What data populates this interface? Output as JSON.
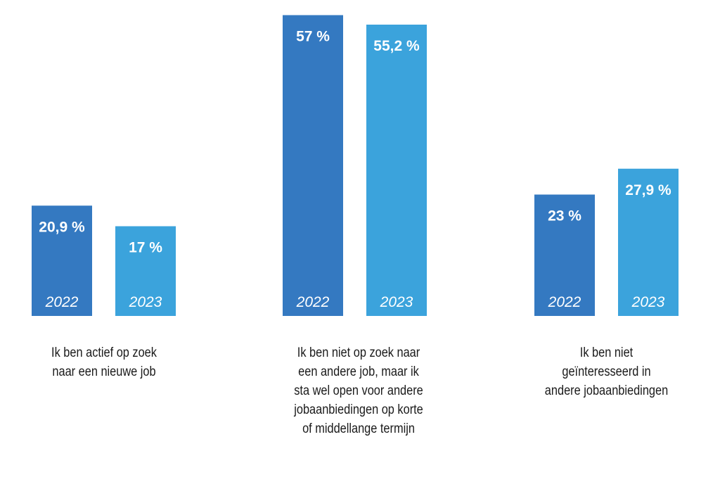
{
  "chart_data": {
    "type": "bar",
    "title": "",
    "xlabel": "",
    "ylabel": "",
    "ylim": [
      0,
      60
    ],
    "grid": false,
    "legend": "none",
    "categories": [
      "Ik ben actief op zoek naar een nieuwe job",
      "Ik ben niet op zoek naar een andere job, maar ik sta wel open voor andere jobaanbiedingen op korte of middellange termijn",
      "Ik ben niet geïnteresseerd in andere jobaanbiedingen"
    ],
    "category_lines": [
      [
        "Ik ben actief op zoek",
        "naar een nieuwe job"
      ],
      [
        "Ik ben niet op zoek naar",
        "een andere job, maar ik",
        "sta wel open voor andere",
        "jobaanbiedingen op korte",
        "of middellange termijn"
      ],
      [
        "Ik ben niet",
        "geïnteresseerd in",
        "andere jobaanbiedingen"
      ]
    ],
    "series": [
      {
        "name": "2022",
        "color": "#3479c1",
        "values": [
          20.9,
          57,
          23
        ],
        "labels": [
          "20,9 %",
          "57 %",
          "23 %"
        ]
      },
      {
        "name": "2023",
        "color": "#3ba3dc",
        "values": [
          17,
          55.2,
          27.9
        ],
        "labels": [
          "17 %",
          "55,2 %",
          "27,9 %"
        ]
      }
    ]
  }
}
